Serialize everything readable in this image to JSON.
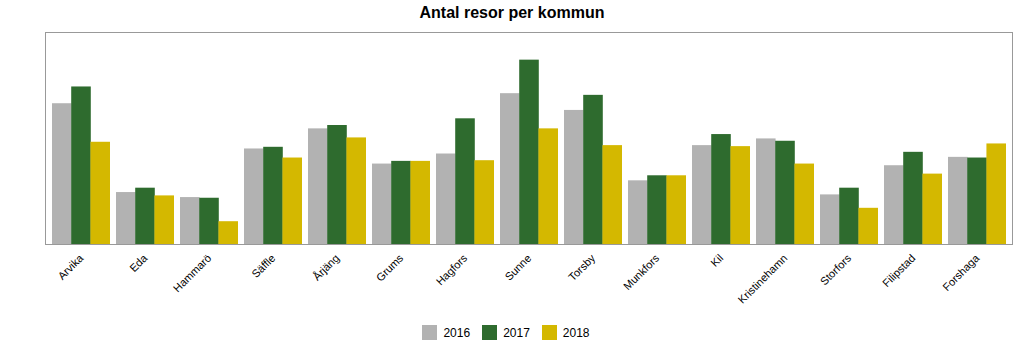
{
  "chart_data": {
    "type": "bar",
    "title": "Antal resor per kommun",
    "categories": [
      "Arvika",
      "Eda",
      "Hammarö",
      "Säffle",
      "Årjäng",
      "Grums",
      "Hagfors",
      "Sunne",
      "Torsby",
      "Munkfors",
      "Kil",
      "Kristinehamn",
      "Storfors",
      "Filipstad",
      "Forshaga"
    ],
    "series": [
      {
        "name": "2016",
        "color": "#b2b2b2",
        "values": [
          420,
          155,
          140,
          285,
          345,
          240,
          270,
          450,
          400,
          190,
          295,
          315,
          148,
          235,
          260
        ]
      },
      {
        "name": "2017",
        "color": "#2e6b2e",
        "values": [
          470,
          168,
          138,
          290,
          355,
          248,
          375,
          550,
          445,
          205,
          328,
          308,
          168,
          275,
          258
        ]
      },
      {
        "name": "2018",
        "color": "#d4b800",
        "values": [
          305,
          145,
          68,
          258,
          318,
          248,
          250,
          345,
          295,
          205,
          292,
          240,
          108,
          210,
          300
        ]
      }
    ],
    "ylim": [
      0,
      632.5
    ],
    "tick_labels": "x",
    "grid": false,
    "legend": "bottom"
  }
}
